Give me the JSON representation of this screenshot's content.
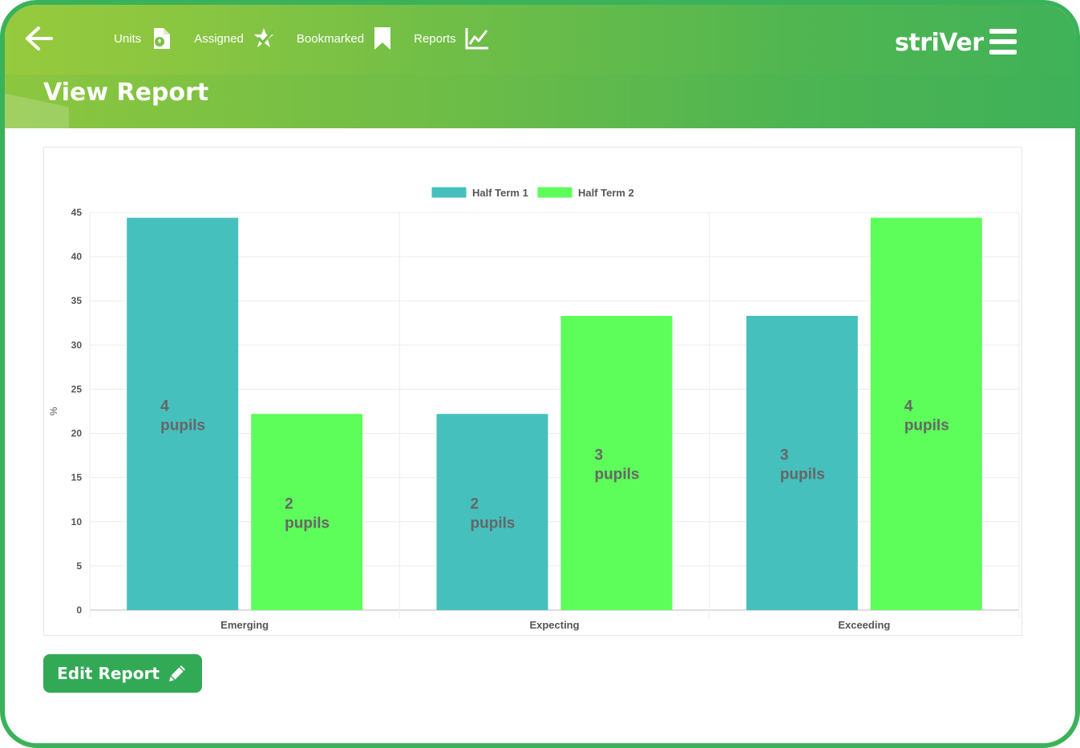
{
  "nav": {
    "items": [
      {
        "label": "Units",
        "icon": "units-icon"
      },
      {
        "label": "Assigned",
        "icon": "assigned-icon"
      },
      {
        "label": "Bookmarked",
        "icon": "bookmark-icon"
      },
      {
        "label": "Reports",
        "icon": "reports-icon"
      }
    ]
  },
  "logo": {
    "text": "striVer"
  },
  "page": {
    "title": "View Report"
  },
  "actions": {
    "edit_label": "Edit Report"
  },
  "colors": {
    "header_start": "#8cc63f",
    "header_end": "#3fb159",
    "series_1": "#46c0bd",
    "series_2": "#5dfd5a",
    "button": "#32a954"
  },
  "chart_data": {
    "type": "bar",
    "categories": [
      "Emerging",
      "Expecting",
      "Exceeding"
    ],
    "series": [
      {
        "name": "Half Term 1",
        "values": [
          44.4,
          22.2,
          33.3
        ],
        "labels": [
          "4 pupils",
          "2 pupils",
          "3 pupils"
        ],
        "color": "#46c0bd"
      },
      {
        "name": "Half Term 2",
        "values": [
          22.2,
          33.3,
          44.4
        ],
        "labels": [
          "2 pupils",
          "3 pupils",
          "4 pupils"
        ],
        "color": "#5dfd5a"
      }
    ],
    "ylabel": "%",
    "ylim": [
      0,
      45
    ],
    "yticks": [
      0,
      5,
      10,
      15,
      20,
      25,
      30,
      35,
      40,
      45
    ],
    "legend": "top",
    "grid": true
  }
}
